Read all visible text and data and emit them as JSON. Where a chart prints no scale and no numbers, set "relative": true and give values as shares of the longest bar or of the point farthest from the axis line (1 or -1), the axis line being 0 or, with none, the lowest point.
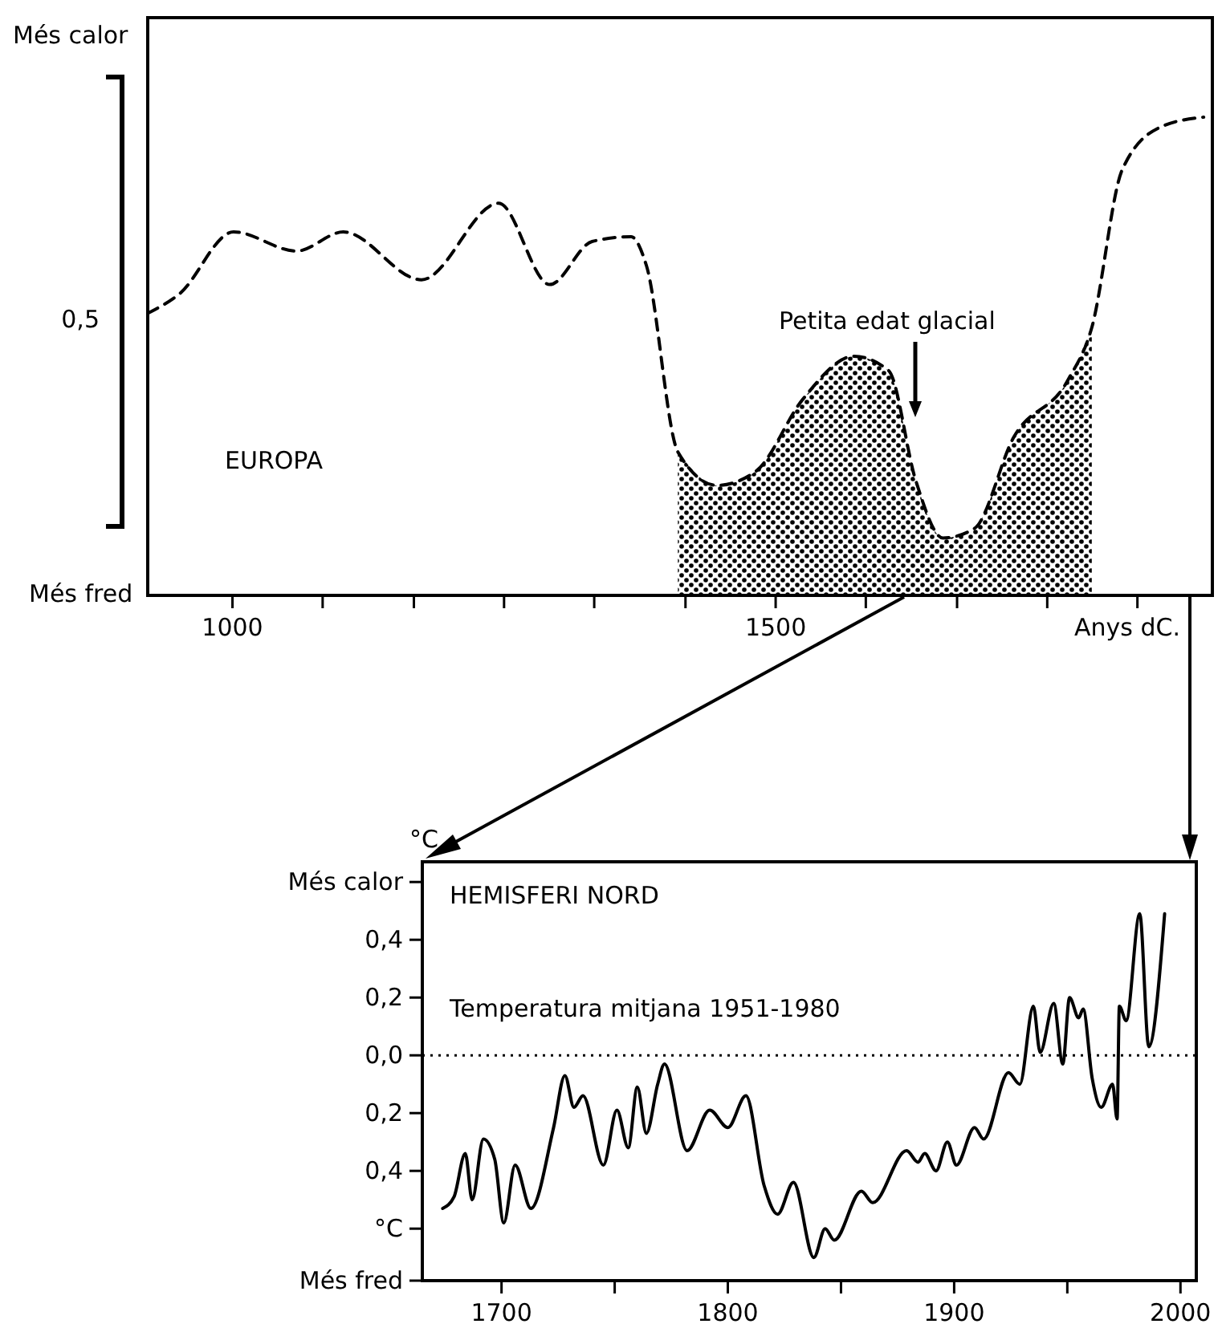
{
  "chart_data": [
    {
      "type": "line",
      "relative": true,
      "xlabel": "Anys dC.",
      "xlim": [
        922,
        1902
      ],
      "xticks": [
        1000,
        {
          "value": 1083,
          "label": null
        },
        {
          "value": 1167,
          "label": null
        },
        {
          "value": 1250,
          "label": null
        },
        {
          "value": 1333,
          "label": null
        },
        {
          "value": 1417,
          "label": null
        },
        1500,
        {
          "value": 1583,
          "label": null
        },
        {
          "value": 1667,
          "label": null
        },
        {
          "value": 1750,
          "label": null
        },
        {
          "value": 1833,
          "label": null
        }
      ],
      "series": [
        {
          "line_style": "dashed",
          "color": "#000000",
          "x": [
            922,
            951,
            1001,
            1059,
            1102,
            1174,
            1245,
            1292,
            1331,
            1367,
            1381,
            1410,
            1446,
            1482,
            1525,
            1572,
            1604,
            1629,
            1654,
            1683,
            1719,
            1769,
            1791,
            1819,
            1855,
            1894
          ],
          "values": [
            0.59,
            0.63,
            0.76,
            0.72,
            0.76,
            0.66,
            0.82,
            0.65,
            0.74,
            0.75,
            0.69,
            0.3,
            0.23,
            0.26,
            0.41,
            0.5,
            0.47,
            0.24,
            0.12,
            0.14,
            0.33,
            0.45,
            0.56,
            0.89,
            0.98,
            1
          ]
        },
        {
          "type": "area",
          "color": "#000000",
          "x": [
            1410,
            1446,
            1482,
            1525,
            1572,
            1604,
            1629,
            1654,
            1683,
            1719,
            1769,
            1791
          ],
          "values": [
            0.3,
            0.23,
            0.26,
            0.41,
            0.5,
            0.47,
            0.24,
            0.12,
            0.14,
            0.33,
            0.45,
            0.56
          ]
        }
      ],
      "annotations": [
        "Més calor",
        "0,5",
        "Més fred",
        "EUROPA",
        "Petita edat glacial"
      ]
    },
    {
      "type": "line",
      "xlim": [
        1665,
        2007
      ],
      "xticks": [
        1700,
        {
          "value": 1750,
          "label": null
        },
        1800,
        {
          "value": 1850,
          "label": null
        },
        1900,
        {
          "value": 1950,
          "label": null
        },
        2000
      ],
      "ylim": [
        -0.78,
        0.67
      ],
      "yticks": [
        {
          "value": 0.6,
          "label": "Més calor"
        },
        {
          "value": 0.4,
          "label": "0,4"
        },
        {
          "value": 0.2,
          "label": "0,2"
        },
        {
          "value": 0,
          "label": "0,0"
        },
        {
          "value": -0.2,
          "label": "0,2"
        },
        {
          "value": -0.4,
          "label": "0,4"
        },
        {
          "value": -0.6,
          "label": "°C"
        },
        {
          "value": -0.78,
          "label": "Més fred"
        }
      ],
      "ylabel": "°C",
      "series": [
        {
          "line_style": "solid",
          "color": "#000000",
          "x": [
            1674,
            1679,
            1684,
            1687,
            1692,
            1697,
            1701,
            1706,
            1713,
            1723,
            1728,
            1732,
            1736,
            1745,
            1751,
            1756,
            1760,
            1764,
            1769,
            1772,
            1782,
            1792,
            1800,
            1808,
            1816,
            1822,
            1829,
            1838,
            1843,
            1847,
            1859,
            1864,
            1879,
            1884,
            1887,
            1892,
            1897,
            1901,
            1909,
            1913,
            1924,
            1929,
            1935,
            1938,
            1944,
            1948,
            1951,
            1955,
            1957,
            1961,
            1965,
            1970,
            1972,
            1973,
            1976,
            1982,
            1986,
            1993
          ],
          "values": [
            -0.53,
            -0.49,
            -0.34,
            -0.5,
            -0.29,
            -0.36,
            -0.58,
            -0.38,
            -0.53,
            -0.25,
            -0.07,
            -0.18,
            -0.14,
            -0.38,
            -0.19,
            -0.32,
            -0.11,
            -0.27,
            -0.1,
            -0.03,
            -0.33,
            -0.19,
            -0.25,
            -0.14,
            -0.45,
            -0.55,
            -0.44,
            -0.7,
            -0.6,
            -0.64,
            -0.47,
            -0.51,
            -0.33,
            -0.37,
            -0.34,
            -0.4,
            -0.3,
            -0.38,
            -0.25,
            -0.29,
            -0.06,
            -0.1,
            0.17,
            0.01,
            0.18,
            -0.03,
            0.2,
            0.13,
            0.16,
            -0.08,
            -0.18,
            -0.1,
            -0.22,
            0.17,
            0.12,
            0.49,
            0.03,
            0.49
          ]
        }
      ],
      "ref_lines": [
        {
          "axis": "y",
          "value": 0,
          "label": "Temperatura mitjana 1951-1980",
          "line_style": "dotted"
        }
      ],
      "annotations": [
        "HEMISFERI NORD"
      ]
    }
  ]
}
